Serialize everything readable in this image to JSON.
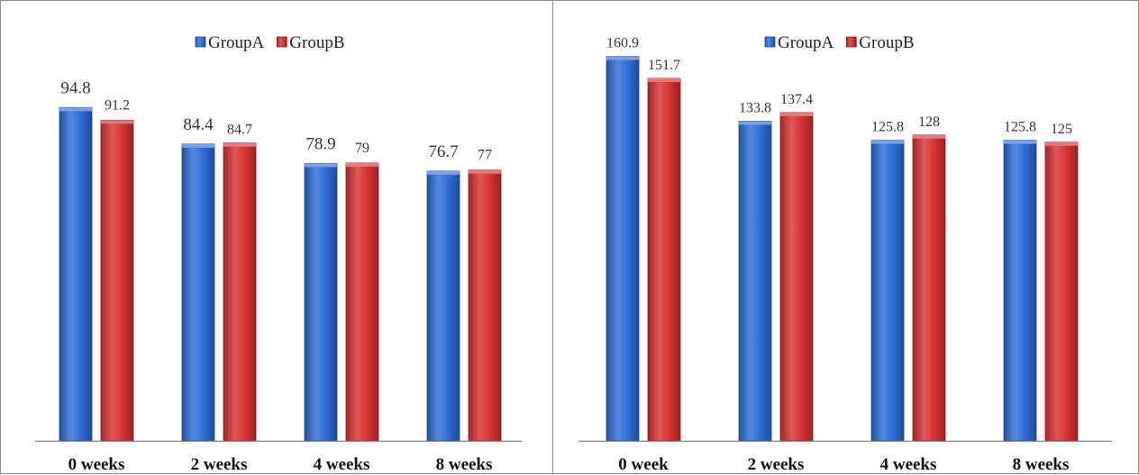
{
  "colors": {
    "groupA": "#2f6ed8",
    "groupB": "#d93333",
    "axis": "#7a7a7a",
    "border": "#8c8c8c"
  },
  "chart_data": [
    {
      "type": "bar",
      "categories": [
        "0 weeks",
        "2 weeks",
        "4 weeks",
        "8 weeks"
      ],
      "series": [
        {
          "name": "GroupA",
          "values": [
            94.8,
            84.4,
            78.9,
            76.7
          ],
          "labels": [
            "94.8",
            "84.4",
            "78.9",
            "76.7"
          ]
        },
        {
          "name": "GroupB",
          "values": [
            91.2,
            84.7,
            79,
            77
          ],
          "labels": [
            "91.2",
            "84.7",
            "79",
            "77"
          ]
        }
      ],
      "ylim": [
        0,
        100
      ],
      "legend": "top-center",
      "grid": false,
      "title": "",
      "xlabel": "",
      "ylabel": ""
    },
    {
      "type": "bar",
      "categories": [
        "0 week",
        "2 weeks",
        "4 weeks",
        "8 weeks"
      ],
      "series": [
        {
          "name": "GroupA",
          "values": [
            160.9,
            133.8,
            125.8,
            125.8
          ],
          "labels": [
            "160.9",
            "133.8",
            "125.8",
            "125.8"
          ]
        },
        {
          "name": "GroupB",
          "values": [
            151.7,
            137.4,
            128,
            125
          ],
          "labels": [
            "151.7",
            "137.4",
            "128",
            "125"
          ]
        }
      ],
      "ylim": [
        0,
        163
      ],
      "legend": "top-center",
      "grid": false,
      "title": "",
      "xlabel": "",
      "ylabel": ""
    }
  ]
}
